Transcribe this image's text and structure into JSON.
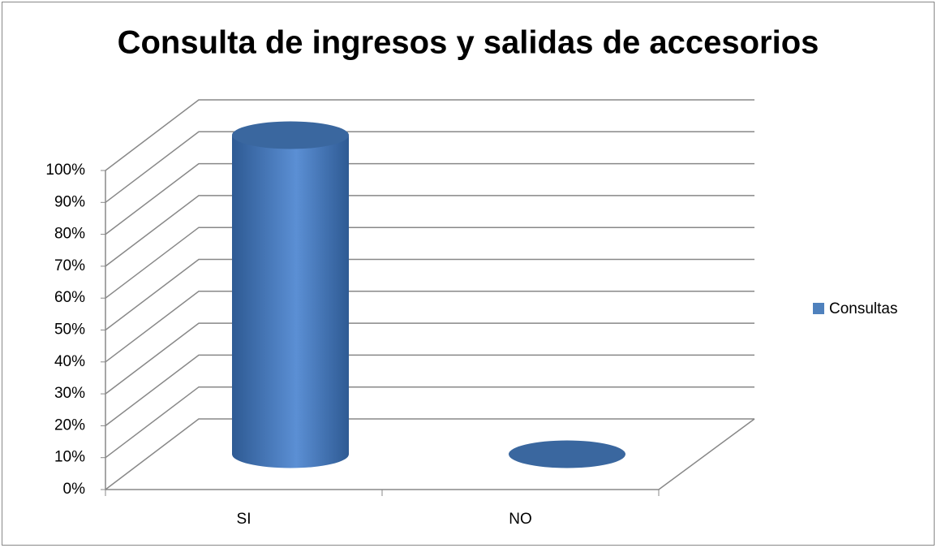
{
  "chart_data": {
    "type": "bar3d",
    "title": "Consulta de ingresos y salidas de accesorios",
    "categories": [
      "SI",
      "NO"
    ],
    "series": [
      {
        "name": "Consultas",
        "color": "#4f81bd",
        "values": [
          100,
          0
        ]
      }
    ],
    "ylim": [
      0,
      100
    ],
    "yticks": [
      {
        "value": 0,
        "label": "0%"
      },
      {
        "value": 10,
        "label": "10%"
      },
      {
        "value": 20,
        "label": "20%"
      },
      {
        "value": 30,
        "label": "30%"
      },
      {
        "value": 40,
        "label": "40%"
      },
      {
        "value": 50,
        "label": "50%"
      },
      {
        "value": 60,
        "label": "60%"
      },
      {
        "value": 70,
        "label": "70%"
      },
      {
        "value": 80,
        "label": "80%"
      },
      {
        "value": 90,
        "label": "90%"
      },
      {
        "value": 100,
        "label": "100%"
      }
    ],
    "grid": true,
    "legend": "right"
  }
}
